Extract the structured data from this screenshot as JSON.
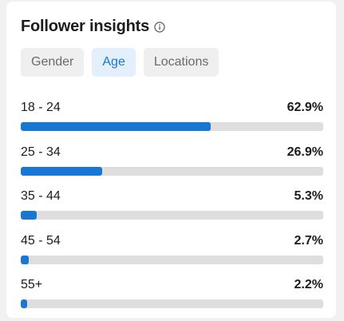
{
  "card": {
    "title": "Follower insights",
    "info_icon": "info-circle-icon"
  },
  "tabs": [
    {
      "label": "Gender",
      "active": false
    },
    {
      "label": "Age",
      "active": true
    },
    {
      "label": "Locations",
      "active": false
    }
  ],
  "colors": {
    "accent": "#1877d2",
    "track": "#dedede",
    "active_tab_bg": "#e3effb",
    "tab_bg": "#efefef"
  },
  "age_rows": [
    {
      "label": "18 - 24",
      "value": "62.9%",
      "fraction": 0.629
    },
    {
      "label": "25 - 34",
      "value": "26.9%",
      "fraction": 0.269
    },
    {
      "label": "35 - 44",
      "value": "5.3%",
      "fraction": 0.053
    },
    {
      "label": "45 - 54",
      "value": "2.7%",
      "fraction": 0.027
    },
    {
      "label": "55+",
      "value": "2.2%",
      "fraction": 0.022
    }
  ]
}
